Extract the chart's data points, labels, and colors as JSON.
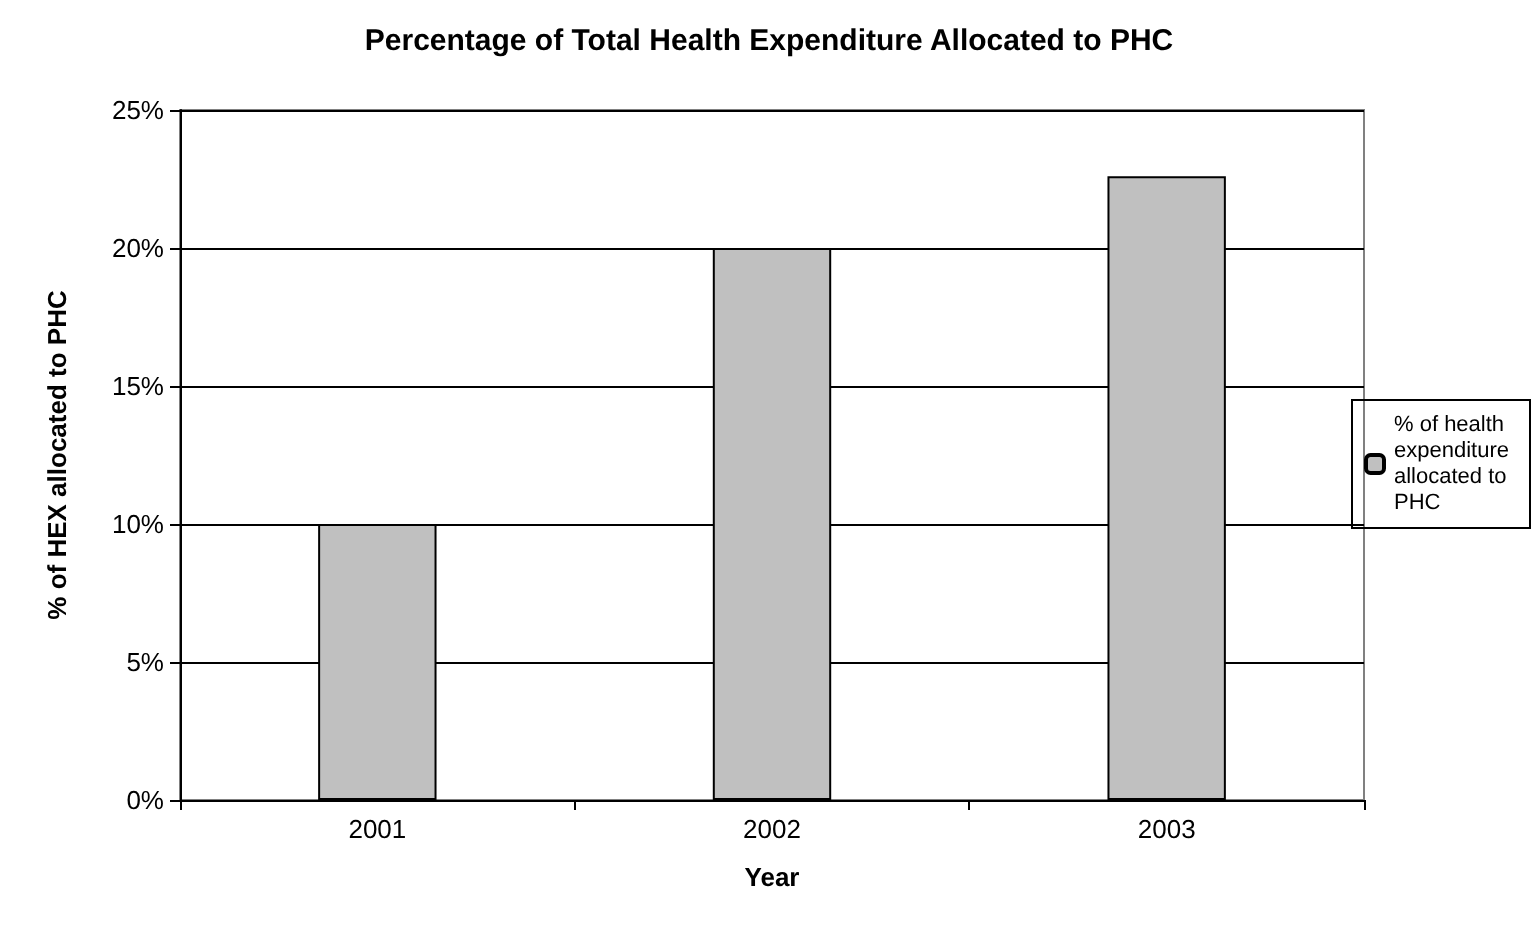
{
  "chart_data": {
    "type": "bar",
    "title": "Percentage of Total Health Expenditure Allocated to PHC",
    "xlabel": "Year",
    "ylabel": "% of HEX allocated to PHC",
    "categories": [
      "2001",
      "2002",
      "2003"
    ],
    "series": [
      {
        "name": "% of health expenditure allocated to PHC",
        "color": "#c0c0c0",
        "values": [
          10,
          20,
          22.6
        ]
      }
    ],
    "ylim": [
      0,
      25
    ],
    "yticks": [
      {
        "value": 0,
        "label": "0%"
      },
      {
        "value": 5,
        "label": "5%"
      },
      {
        "value": 10,
        "label": "10%"
      },
      {
        "value": 15,
        "label": "15%"
      },
      {
        "value": 20,
        "label": "20%"
      },
      {
        "value": 25,
        "label": "25%"
      }
    ],
    "grid": "y",
    "legend": "right"
  }
}
